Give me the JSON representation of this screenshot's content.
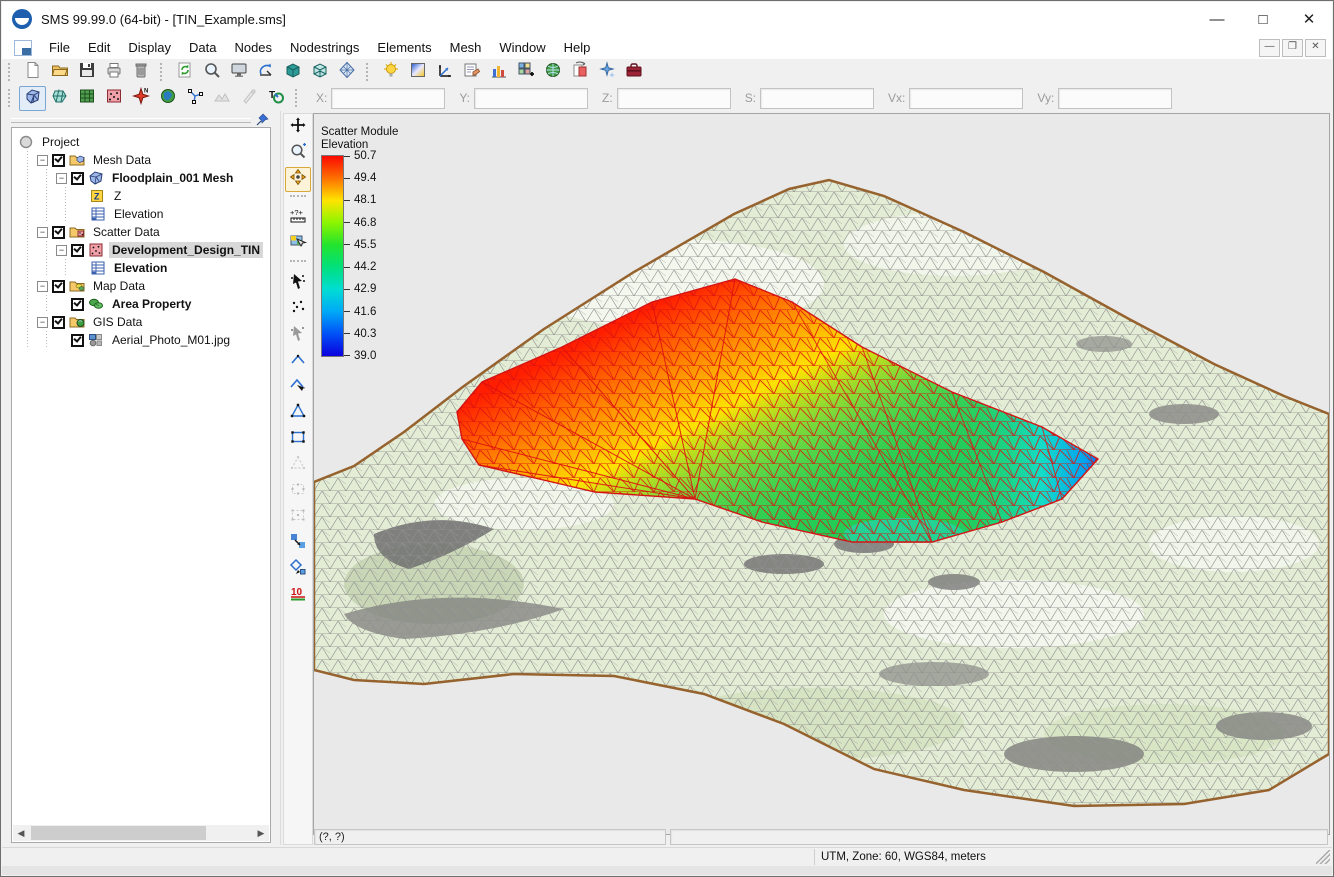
{
  "window": {
    "title": "SMS 99.99.0 (64-bit) - [TIN_Example.sms]",
    "controls": {
      "minimize": "—",
      "maximize": "□",
      "close": "✕"
    },
    "mdi_controls": {
      "minimize": "—",
      "restore": "❐",
      "close": "✕"
    }
  },
  "menus": [
    "File",
    "Edit",
    "Display",
    "Data",
    "Nodes",
    "Nodestrings",
    "Elements",
    "Mesh",
    "Window",
    "Help"
  ],
  "toolbar_main": [
    {
      "icons": [
        "new-file",
        "open",
        "save",
        "print",
        "delete"
      ]
    },
    {
      "icons": [
        "refresh",
        "zoom-tool",
        "display-options",
        "rotate-view",
        "cube-solid",
        "cube-wire",
        "view-sphere"
      ]
    },
    {
      "icons": [
        "light-bulb",
        "contour-options",
        "axes",
        "properties",
        "plot-wizard",
        "grid-add",
        "web-globe",
        "page-orientation",
        "effects",
        "toolbox"
      ]
    }
  ],
  "toolbar_modules": [
    {
      "name": "mesh-module",
      "selected": true
    },
    {
      "name": "mesh2-module"
    },
    {
      "name": "grid-module"
    },
    {
      "name": "scatter-module"
    },
    {
      "name": "map-module"
    },
    {
      "name": "gis-module"
    },
    {
      "name": "curvilinear-module"
    },
    {
      "name": "profile-module",
      "disabled": true
    },
    {
      "name": "annotation-module",
      "disabled": true
    },
    {
      "name": "river1d-module"
    }
  ],
  "coord_fields": [
    {
      "label": "X:",
      "value": ""
    },
    {
      "label": "Y:",
      "value": ""
    },
    {
      "label": "Z:",
      "value": ""
    },
    {
      "label": "S:",
      "value": ""
    },
    {
      "label": "Vx:",
      "value": ""
    },
    {
      "label": "Vy:",
      "value": ""
    }
  ],
  "project_tree": [
    {
      "label": "Project",
      "depth": 0,
      "icon": "project"
    },
    {
      "label": "Mesh Data",
      "depth": 1,
      "icon": "folder-mesh",
      "checked": true,
      "expander": true
    },
    {
      "label": "Floodplain_001 Mesh",
      "depth": 2,
      "icon": "mesh",
      "checked": true,
      "bold": true,
      "expander": true
    },
    {
      "label": "Z",
      "depth": 3,
      "icon": "z"
    },
    {
      "label": "Elevation",
      "depth": 3,
      "icon": "dataset"
    },
    {
      "label": "Scatter Data",
      "depth": 1,
      "icon": "folder-scatter",
      "checked": true,
      "expander": true
    },
    {
      "label": "Development_Design_TIN",
      "depth": 2,
      "icon": "scatter",
      "checked": true,
      "bold": true,
      "selected": true,
      "expander": true
    },
    {
      "label": "Elevation",
      "depth": 3,
      "icon": "dataset",
      "bold": true
    },
    {
      "label": "Map Data",
      "depth": 1,
      "icon": "folder-map",
      "checked": true,
      "expander": true
    },
    {
      "label": "Area Property",
      "depth": 2,
      "icon": "area",
      "checked": true,
      "bold": true
    },
    {
      "label": "GIS Data",
      "depth": 1,
      "icon": "folder-gis",
      "checked": true,
      "expander": true
    },
    {
      "label": "Aerial_Photo_M01.jpg",
      "depth": 2,
      "icon": "image",
      "checked": true
    }
  ],
  "view_tools": [
    {
      "name": "pan"
    },
    {
      "name": "zoom"
    },
    {
      "name": "rotate",
      "selected": true
    },
    {
      "sep": true
    },
    {
      "name": "measure"
    },
    {
      "name": "select-image"
    },
    {
      "sep": true
    },
    {
      "name": "select-points"
    },
    {
      "name": "create-points"
    },
    {
      "name": "select-elements"
    },
    {
      "name": "arc"
    },
    {
      "name": "arc-select"
    },
    {
      "name": "triangle"
    },
    {
      "name": "rectangle"
    },
    {
      "name": "triangle-dashed",
      "disabled": true
    },
    {
      "name": "rect-select",
      "disabled": true
    },
    {
      "name": "rect-select2",
      "disabled": true
    },
    {
      "name": "swap-edges"
    },
    {
      "name": "merge-tin"
    },
    {
      "name": "contour-label"
    }
  ],
  "legend": {
    "module_title": "Scatter Module",
    "dataset_title": "Elevation",
    "ticks": [
      "50.7",
      "49.4",
      "48.1",
      "46.8",
      "45.5",
      "44.2",
      "42.9",
      "41.6",
      "40.3",
      "39.0"
    ],
    "gradient": [
      "#fb0900",
      "#fd7000",
      "#ffe400",
      "#8cf500",
      "#23e42e",
      "#00e07c",
      "#00ddd3",
      "#00a9f7",
      "#0051f7",
      "#0b00dd"
    ]
  },
  "status": {
    "cursor_cell": "(?, ?)",
    "message_cell": "",
    "projection": "UTM, Zone: 60, WGS84, meters"
  }
}
